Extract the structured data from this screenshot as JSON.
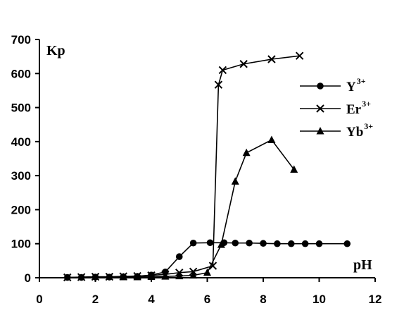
{
  "chart_data": {
    "type": "line",
    "xlabel": "pH",
    "ylabel": "Kp",
    "xlim": [
      0,
      12
    ],
    "ylim": [
      0,
      700
    ],
    "xticks": [
      0,
      2,
      4,
      6,
      8,
      10,
      12
    ],
    "yticks": [
      0,
      100,
      200,
      300,
      400,
      500,
      600,
      700
    ],
    "grid": false,
    "legend_position": "right",
    "series": [
      {
        "name": "Y",
        "charge": "3+",
        "marker": "circle",
        "x": [
          1.0,
          1.5,
          2.0,
          2.5,
          3.0,
          3.5,
          4.0,
          4.5,
          5.0,
          5.5,
          6.1,
          6.6,
          7.0,
          7.5,
          8.0,
          8.5,
          9.0,
          9.5,
          10.0,
          11.0
        ],
        "y": [
          1,
          1,
          2,
          2,
          3,
          4,
          8,
          17,
          62,
          102,
          103,
          103,
          102,
          102,
          101,
          100,
          100,
          100,
          100,
          100
        ]
      },
      {
        "name": "Er",
        "charge": "3+",
        "marker": "x",
        "x": [
          1.0,
          1.5,
          2.0,
          2.5,
          3.0,
          3.5,
          4.0,
          4.5,
          5.0,
          5.5,
          6.2,
          6.4,
          6.55,
          7.3,
          8.3,
          9.3
        ],
        "y": [
          1,
          2,
          3,
          3,
          4,
          5,
          7,
          10,
          15,
          18,
          35,
          567,
          610,
          628,
          642,
          652
        ]
      },
      {
        "name": "Yb",
        "charge": "3+",
        "marker": "triangle",
        "x": [
          3.0,
          3.5,
          4.0,
          4.5,
          5.0,
          5.5,
          6.0,
          6.5,
          7.0,
          7.4,
          8.3,
          9.1
        ],
        "y": [
          2,
          2,
          3,
          4,
          5,
          7,
          15,
          97,
          283,
          367,
          405,
          318
        ]
      }
    ]
  }
}
